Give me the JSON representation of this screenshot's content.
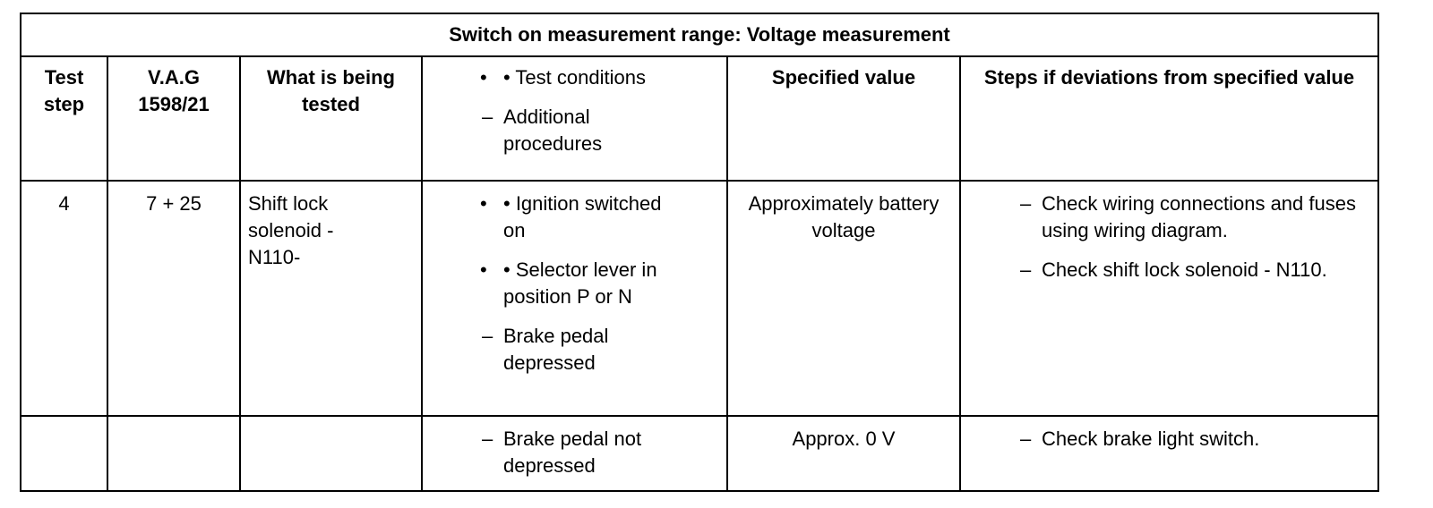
{
  "table": {
    "title": "Switch on measurement range: Voltage measurement",
    "header": [
      "Test step",
      "V.A.G 1598/21",
      "What is being tested",
      [
        {
          "kind": "bullet",
          "text": "• Test conditions"
        },
        {
          "kind": "dash",
          "text": "Additional procedures"
        }
      ],
      "Specified value",
      "Steps if deviations from specified value"
    ],
    "rows": [
      [
        "4",
        "7 + 25",
        "Shift lock solenoid - N110-",
        [
          {
            "kind": "bullet",
            "text": "• Ignition switched on"
          },
          {
            "kind": "bullet",
            "text": "• Selector lever in position P or N"
          },
          {
            "kind": "dash",
            "text": "Brake pedal depressed"
          }
        ],
        "Approximately battery voltage",
        [
          {
            "kind": "dash",
            "text": "Check wiring connections and fuses using wiring diagram."
          },
          {
            "kind": "dash",
            "text": "Check shift lock solenoid - N110."
          }
        ]
      ],
      [
        null,
        null,
        null,
        [
          {
            "kind": "dash",
            "text": "Brake pedal not depressed"
          }
        ],
        "Approx. 0 V",
        [
          {
            "kind": "dash",
            "text": "Check brake light switch."
          }
        ]
      ]
    ]
  }
}
